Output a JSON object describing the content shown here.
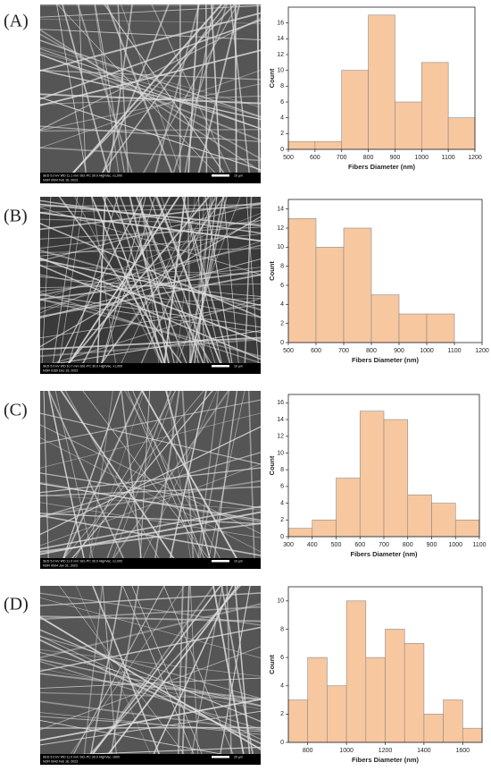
{
  "panels": [
    {
      "label": "(A)",
      "sem": {
        "info": [
          "SED 5.0 kV WD 11.1 mm Std.-PC 30.0 HighVac. x1,000",
          "NOR 0004 Feb 16, 2023"
        ],
        "scale": "10 μm"
      }
    },
    {
      "label": "(B)",
      "sem": {
        "info": [
          "SED 5.0 kV WD 10.7 mm Std.-PC 30.0 HighVac. x1,000",
          "NOR 0160 Dec 15, 2022"
        ],
        "scale": "10 μm"
      }
    },
    {
      "label": "(C)",
      "sem": {
        "info": [
          "SED 5.0 kV WD 11.0 mm Std.-PC 30.0 HighVac. x1,000",
          "NOR 0004 Jan 31, 2023"
        ],
        "scale": "10 μm"
      }
    },
    {
      "label": "(D)",
      "sem": {
        "info": [
          "SED 5.0 kV WD 11.0 mm Std.-PC 30.0 HighVac. x600",
          "NOR 0042 Feb 16, 2023"
        ],
        "scale": "20 μm"
      }
    }
  ],
  "chart_data": [
    {
      "type": "histogram",
      "xlabel": "Fibers Diameter (nm)",
      "ylabel": "Count",
      "color": "#f7c7a0",
      "bins": [
        500,
        600,
        700,
        800,
        900,
        1000,
        1100,
        1200
      ],
      "values": [
        1,
        1,
        10,
        17,
        6,
        11,
        4
      ],
      "xlim": [
        500,
        1200
      ],
      "xticks": [
        500,
        600,
        700,
        800,
        900,
        1000,
        1100,
        1200
      ],
      "ylim": [
        0,
        18
      ],
      "yticks": [
        0,
        2,
        4,
        6,
        8,
        10,
        12,
        14,
        16
      ]
    },
    {
      "type": "histogram",
      "xlabel": "Fibers Diameter (nm)",
      "ylabel": "Count",
      "color": "#f7c7a0",
      "bins": [
        500,
        600,
        700,
        800,
        900,
        1000,
        1100
      ],
      "values": [
        13,
        10,
        12,
        5,
        3,
        3
      ],
      "xlim": [
        500,
        1200
      ],
      "xticks": [
        500,
        600,
        700,
        800,
        900,
        1000,
        1100,
        1200
      ],
      "ylim": [
        0,
        15
      ],
      "yticks": [
        0,
        2,
        4,
        6,
        8,
        10,
        12,
        14
      ]
    },
    {
      "type": "histogram",
      "xlabel": "Fibers Diameter (nm)",
      "ylabel": "Count",
      "color": "#f7c7a0",
      "bins": [
        300,
        400,
        500,
        600,
        700,
        800,
        900,
        1000,
        1100
      ],
      "values": [
        1,
        2,
        7,
        15,
        14,
        5,
        4,
        2
      ],
      "xlim": [
        300,
        1100
      ],
      "xticks": [
        300,
        400,
        500,
        600,
        700,
        800,
        900,
        1000,
        1100
      ],
      "ylim": [
        0,
        17
      ],
      "yticks": [
        0,
        2,
        4,
        6,
        8,
        10,
        12,
        14,
        16
      ]
    },
    {
      "type": "histogram",
      "xlabel": "Fibers Diameter (nm)",
      "ylabel": "Count",
      "color": "#f7c7a0",
      "bins": [
        700,
        800,
        900,
        1000,
        1100,
        1200,
        1300,
        1400,
        1500,
        1600,
        1700
      ],
      "values": [
        3,
        6,
        4,
        10,
        6,
        8,
        7,
        2,
        3,
        1
      ],
      "xlim": [
        700,
        1700
      ],
      "xticks": [
        800,
        1000,
        1200,
        1400,
        1600
      ],
      "ylim": [
        0,
        11
      ],
      "yticks": [
        0,
        2,
        4,
        6,
        8,
        10
      ]
    }
  ]
}
